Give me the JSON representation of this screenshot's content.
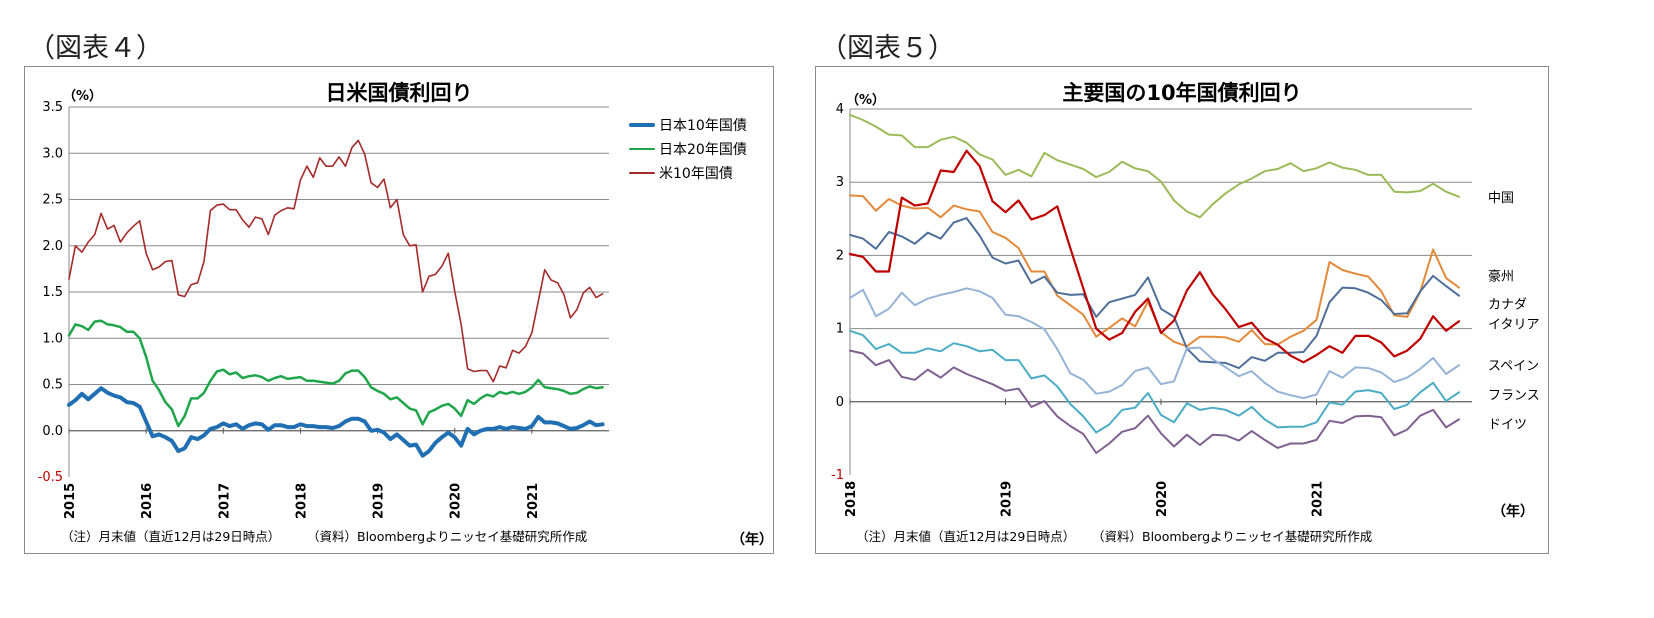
{
  "figures": [
    {
      "label": "（図表４）",
      "unit": "（%）",
      "x_unit": "（年）",
      "note_left": "（注）月末値（直近12月は29日時点）",
      "note_right": "（資料）Bloombergよりニッセイ基礎研究所作成"
    },
    {
      "label": "（図表５）",
      "unit": "（%）",
      "x_unit": "（年）",
      "note_left": "（注）月末値（直近12月は29日時点）",
      "note_right": "（資料）Bloombergよりニッセイ基礎研究所作成"
    }
  ],
  "chart_data": [
    {
      "type": "line",
      "title": "日米国債利回り",
      "ylim": [
        -0.5,
        3.5
      ],
      "yticks": [
        "3.5",
        "3.0",
        "2.5",
        "2.0",
        "1.5",
        "1.0",
        "0.5",
        "0.0",
        "-0.5"
      ],
      "xticks": [
        "2015",
        "2016",
        "2017",
        "2018",
        "2019",
        "2020",
        "2021"
      ],
      "x_start": 2015.0,
      "x_end": 2022.0,
      "grid": true,
      "legend_position": "top-right",
      "series": [
        {
          "name": "日本10年国債",
          "color": "#1f6fb2",
          "width": 4,
          "values": [
            0.28,
            0.33,
            0.4,
            0.34,
            0.4,
            0.46,
            0.41,
            0.38,
            0.36,
            0.31,
            0.3,
            0.26,
            0.1,
            -0.06,
            -0.04,
            -0.07,
            -0.11,
            -0.22,
            -0.19,
            -0.07,
            -0.09,
            -0.05,
            0.02,
            0.04,
            0.08,
            0.05,
            0.07,
            0.02,
            0.06,
            0.08,
            0.07,
            0.01,
            0.06,
            0.06,
            0.04,
            0.04,
            0.07,
            0.05,
            0.05,
            0.04,
            0.04,
            0.03,
            0.05,
            0.1,
            0.13,
            0.13,
            0.1,
            0.0,
            0.01,
            -0.02,
            -0.09,
            -0.04,
            -0.1,
            -0.16,
            -0.15,
            -0.27,
            -0.22,
            -0.13,
            -0.07,
            -0.02,
            -0.07,
            -0.16,
            0.02,
            -0.04,
            0.0,
            0.02,
            0.02,
            0.04,
            0.02,
            0.04,
            0.03,
            0.02,
            0.05,
            0.15,
            0.09,
            0.09,
            0.08,
            0.05,
            0.02,
            0.03,
            0.06,
            0.1,
            0.06,
            0.07
          ]
        },
        {
          "name": "日本20年国債",
          "color": "#1fa64a",
          "width": 2.5,
          "values": [
            1.03,
            1.15,
            1.13,
            1.09,
            1.18,
            1.19,
            1.15,
            1.14,
            1.12,
            1.07,
            1.07,
            1.0,
            0.8,
            0.54,
            0.44,
            0.31,
            0.23,
            0.05,
            0.16,
            0.35,
            0.35,
            0.41,
            0.54,
            0.64,
            0.66,
            0.61,
            0.63,
            0.57,
            0.59,
            0.6,
            0.58,
            0.54,
            0.57,
            0.59,
            0.56,
            0.57,
            0.58,
            0.54,
            0.54,
            0.53,
            0.52,
            0.51,
            0.54,
            0.62,
            0.65,
            0.65,
            0.58,
            0.47,
            0.43,
            0.4,
            0.34,
            0.36,
            0.3,
            0.24,
            0.22,
            0.07,
            0.2,
            0.23,
            0.27,
            0.29,
            0.24,
            0.16,
            0.33,
            0.29,
            0.35,
            0.39,
            0.37,
            0.42,
            0.4,
            0.42,
            0.4,
            0.42,
            0.47,
            0.55,
            0.47,
            0.46,
            0.45,
            0.43,
            0.4,
            0.41,
            0.45,
            0.48,
            0.46,
            0.47
          ]
        },
        {
          "name": "米10年国債",
          "color": "#a52a2a",
          "width": 1.6,
          "values": [
            1.64,
            2.0,
            1.93,
            2.04,
            2.12,
            2.35,
            2.18,
            2.22,
            2.04,
            2.14,
            2.21,
            2.27,
            1.92,
            1.74,
            1.77,
            1.83,
            1.84,
            1.47,
            1.45,
            1.58,
            1.6,
            1.83,
            2.38,
            2.44,
            2.45,
            2.39,
            2.39,
            2.28,
            2.2,
            2.31,
            2.29,
            2.12,
            2.33,
            2.38,
            2.41,
            2.4,
            2.71,
            2.86,
            2.74,
            2.95,
            2.86,
            2.86,
            2.96,
            2.86,
            3.06,
            3.14,
            2.99,
            2.68,
            2.63,
            2.72,
            2.41,
            2.5,
            2.12,
            2.0,
            2.01,
            1.5,
            1.67,
            1.69,
            1.78,
            1.92,
            1.51,
            1.15,
            0.67,
            0.64,
            0.65,
            0.65,
            0.53,
            0.7,
            0.68,
            0.87,
            0.84,
            0.91,
            1.06,
            1.4,
            1.74,
            1.63,
            1.6,
            1.47,
            1.22,
            1.31,
            1.49,
            1.55,
            1.44,
            1.48
          ]
        }
      ]
    },
    {
      "type": "line",
      "title": "主要国の10年国債利回り",
      "ylim": [
        -1,
        4
      ],
      "yticks": [
        "4",
        "3",
        "2",
        "1",
        "0",
        "-1"
      ],
      "xticks": [
        "2018",
        "2019",
        "2020",
        "2021"
      ],
      "x_start": 2018.0,
      "x_end": 2022.0,
      "grid": true,
      "legend_position": "right",
      "series": [
        {
          "name": "中国",
          "color": "#9bbb59",
          "width": 2,
          "values": [
            3.92,
            3.85,
            3.76,
            3.65,
            3.64,
            3.48,
            3.48,
            3.58,
            3.62,
            3.54,
            3.38,
            3.31,
            3.1,
            3.17,
            3.08,
            3.4,
            3.3,
            3.24,
            3.18,
            3.07,
            3.14,
            3.28,
            3.19,
            3.15,
            3.01,
            2.75,
            2.6,
            2.52,
            2.7,
            2.85,
            2.97,
            3.05,
            3.15,
            3.18,
            3.26,
            3.15,
            3.19,
            3.27,
            3.2,
            3.17,
            3.1,
            3.1,
            2.87,
            2.86,
            2.88,
            2.98,
            2.87,
            2.8
          ]
        },
        {
          "name": "豪州",
          "color": "#e3893a",
          "width": 2,
          "values": [
            2.82,
            2.81,
            2.61,
            2.77,
            2.68,
            2.64,
            2.65,
            2.52,
            2.68,
            2.63,
            2.6,
            2.32,
            2.24,
            2.1,
            1.78,
            1.78,
            1.45,
            1.32,
            1.19,
            0.89,
            1.01,
            1.14,
            1.03,
            1.37,
            0.95,
            0.82,
            0.76,
            0.89,
            0.89,
            0.88,
            0.82,
            0.98,
            0.79,
            0.78,
            0.89,
            0.97,
            1.12,
            1.91,
            1.8,
            1.75,
            1.71,
            1.51,
            1.18,
            1.16,
            1.5,
            2.08,
            1.69,
            1.56
          ]
        },
        {
          "name": "カナダ",
          "color": "#4f6f9a",
          "width": 2,
          "values": [
            2.28,
            2.23,
            2.09,
            2.32,
            2.26,
            2.16,
            2.31,
            2.23,
            2.45,
            2.51,
            2.27,
            1.97,
            1.89,
            1.93,
            1.62,
            1.71,
            1.49,
            1.46,
            1.47,
            1.16,
            1.36,
            1.41,
            1.46,
            1.7,
            1.27,
            1.16,
            0.73,
            0.55,
            0.54,
            0.53,
            0.46,
            0.61,
            0.56,
            0.67,
            0.67,
            0.68,
            0.9,
            1.36,
            1.56,
            1.55,
            1.49,
            1.39,
            1.2,
            1.21,
            1.51,
            1.72,
            1.58,
            1.45
          ]
        },
        {
          "name": "イタリア",
          "color": "#c00000",
          "width": 2.2,
          "values": [
            2.02,
            1.98,
            1.78,
            1.78,
            2.79,
            2.68,
            2.71,
            3.16,
            3.14,
            3.43,
            3.22,
            2.74,
            2.59,
            2.75,
            2.49,
            2.55,
            2.67,
            2.1,
            1.55,
            1.0,
            0.85,
            0.94,
            1.23,
            1.41,
            0.94,
            1.11,
            1.52,
            1.77,
            1.47,
            1.26,
            1.02,
            1.08,
            0.87,
            0.78,
            0.63,
            0.54,
            0.64,
            0.76,
            0.67,
            0.9,
            0.9,
            0.81,
            0.62,
            0.7,
            0.86,
            1.17,
            0.97,
            1.1
          ]
        },
        {
          "name": "スペイン",
          "color": "#95b3d7",
          "width": 2,
          "values": [
            1.42,
            1.53,
            1.17,
            1.27,
            1.49,
            1.32,
            1.41,
            1.46,
            1.5,
            1.55,
            1.51,
            1.42,
            1.19,
            1.17,
            1.09,
            0.99,
            0.72,
            0.39,
            0.3,
            0.11,
            0.14,
            0.23,
            0.42,
            0.47,
            0.24,
            0.28,
            0.73,
            0.74,
            0.58,
            0.47,
            0.35,
            0.42,
            0.26,
            0.14,
            0.09,
            0.05,
            0.1,
            0.42,
            0.33,
            0.47,
            0.46,
            0.4,
            0.27,
            0.33,
            0.45,
            0.6,
            0.38,
            0.5
          ]
        },
        {
          "name": "フランス",
          "color": "#4bacc6",
          "width": 2,
          "values": [
            0.97,
            0.91,
            0.72,
            0.79,
            0.67,
            0.67,
            0.73,
            0.69,
            0.8,
            0.76,
            0.69,
            0.71,
            0.57,
            0.57,
            0.32,
            0.36,
            0.21,
            -0.03,
            -0.2,
            -0.42,
            -0.31,
            -0.11,
            -0.08,
            0.12,
            -0.18,
            -0.28,
            -0.02,
            -0.11,
            -0.08,
            -0.11,
            -0.19,
            -0.07,
            -0.24,
            -0.35,
            -0.34,
            -0.34,
            -0.28,
            -0.01,
            -0.04,
            0.14,
            0.16,
            0.12,
            -0.1,
            -0.04,
            0.13,
            0.26,
            0.01,
            0.13
          ]
        },
        {
          "name": "ドイツ",
          "color": "#7f6090",
          "width": 2,
          "values": [
            0.7,
            0.66,
            0.5,
            0.57,
            0.34,
            0.3,
            0.44,
            0.33,
            0.47,
            0.38,
            0.31,
            0.24,
            0.15,
            0.18,
            -0.07,
            0.01,
            -0.2,
            -0.33,
            -0.44,
            -0.7,
            -0.57,
            -0.41,
            -0.36,
            -0.19,
            -0.43,
            -0.61,
            -0.45,
            -0.59,
            -0.45,
            -0.46,
            -0.53,
            -0.4,
            -0.52,
            -0.63,
            -0.57,
            -0.57,
            -0.52,
            -0.26,
            -0.29,
            -0.2,
            -0.19,
            -0.21,
            -0.46,
            -0.38,
            -0.19,
            -0.11,
            -0.35,
            -0.24
          ]
        }
      ]
    }
  ]
}
